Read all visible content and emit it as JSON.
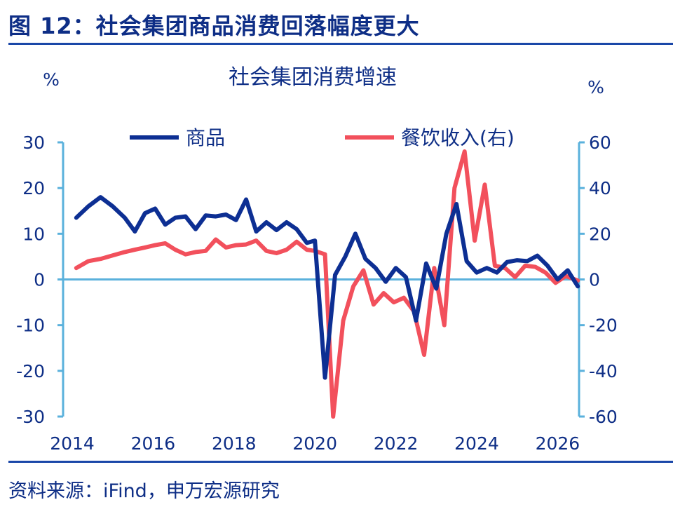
{
  "figure_title": "图 12：社会集团商品消费回落幅度更大",
  "source": "资料来源：iFind，申万宏源研究",
  "colors": {
    "series_goods": "#0d2f93",
    "series_catering": "#f2505c",
    "axis": "#5ab1dc",
    "text": "#0e2e86"
  },
  "chart_data": {
    "type": "line",
    "title": "社会集团消费增速",
    "y_left": {
      "unit": "%",
      "range": [
        -30,
        30
      ],
      "ticks": [
        30,
        20,
        10,
        0,
        -10,
        -20,
        -30
      ]
    },
    "y_right": {
      "unit": "%",
      "range": [
        -60,
        60
      ],
      "ticks": [
        60,
        40,
        20,
        0,
        -20,
        -40,
        -60
      ]
    },
    "x_axis": {
      "range": [
        2014,
        2026.6
      ],
      "ticks": [
        2014,
        2016,
        2018,
        2020,
        2022,
        2024,
        2026
      ]
    },
    "legend_position": "top",
    "series": [
      {
        "name": "商品",
        "axis": "left",
        "points": [
          [
            2014.1,
            13.5
          ],
          [
            2014.4,
            16.0
          ],
          [
            2014.7,
            18.0
          ],
          [
            2015.0,
            16.0
          ],
          [
            2015.3,
            13.5
          ],
          [
            2015.55,
            10.5
          ],
          [
            2015.8,
            14.5
          ],
          [
            2016.05,
            15.5
          ],
          [
            2016.3,
            12.0
          ],
          [
            2016.55,
            13.5
          ],
          [
            2016.8,
            13.8
          ],
          [
            2017.05,
            11.0
          ],
          [
            2017.3,
            14.0
          ],
          [
            2017.55,
            13.8
          ],
          [
            2017.8,
            14.2
          ],
          [
            2018.05,
            13.0
          ],
          [
            2018.3,
            17.5
          ],
          [
            2018.55,
            10.5
          ],
          [
            2018.8,
            12.5
          ],
          [
            2019.05,
            10.8
          ],
          [
            2019.3,
            12.5
          ],
          [
            2019.55,
            11.0
          ],
          [
            2019.8,
            8.0
          ],
          [
            2020.0,
            8.5
          ],
          [
            2020.25,
            -21.5
          ],
          [
            2020.5,
            1.0
          ],
          [
            2020.75,
            5.0
          ],
          [
            2021.0,
            10.0
          ],
          [
            2021.25,
            4.5
          ],
          [
            2021.5,
            2.5
          ],
          [
            2021.75,
            -0.5
          ],
          [
            2022.0,
            2.5
          ],
          [
            2022.25,
            0.5
          ],
          [
            2022.5,
            -9.0
          ],
          [
            2022.75,
            3.5
          ],
          [
            2023.0,
            -2.0
          ],
          [
            2023.25,
            10.0
          ],
          [
            2023.5,
            16.5
          ],
          [
            2023.75,
            4.0
          ],
          [
            2024.0,
            1.5
          ],
          [
            2024.25,
            2.5
          ],
          [
            2024.5,
            1.5
          ],
          [
            2024.75,
            3.8
          ],
          [
            2025.0,
            4.2
          ],
          [
            2025.25,
            4.0
          ],
          [
            2025.5,
            5.2
          ],
          [
            2025.75,
            3.0
          ],
          [
            2026.0,
            0.0
          ],
          [
            2026.25,
            2.0
          ],
          [
            2026.5,
            -1.5
          ]
        ]
      },
      {
        "name": "餐饮收入(右)",
        "axis": "right",
        "points": [
          [
            2014.1,
            5.0
          ],
          [
            2014.4,
            8.0
          ],
          [
            2014.7,
            9.0
          ],
          [
            2015.0,
            10.5
          ],
          [
            2015.3,
            12.0
          ],
          [
            2015.55,
            13.0
          ],
          [
            2015.8,
            14.0
          ],
          [
            2016.05,
            15.0
          ],
          [
            2016.3,
            15.8
          ],
          [
            2016.55,
            13.0
          ],
          [
            2016.8,
            11.0
          ],
          [
            2017.05,
            12.0
          ],
          [
            2017.3,
            12.5
          ],
          [
            2017.55,
            17.5
          ],
          [
            2017.8,
            14.0
          ],
          [
            2018.05,
            15.0
          ],
          [
            2018.3,
            15.3
          ],
          [
            2018.55,
            17.0
          ],
          [
            2018.8,
            12.5
          ],
          [
            2019.05,
            11.5
          ],
          [
            2019.3,
            13.0
          ],
          [
            2019.55,
            16.5
          ],
          [
            2019.8,
            13.0
          ],
          [
            2020.0,
            12.5
          ],
          [
            2020.25,
            11.0
          ],
          [
            2020.45,
            -60.0
          ],
          [
            2020.7,
            -18.0
          ],
          [
            2020.95,
            -3.0
          ],
          [
            2021.2,
            4.0
          ],
          [
            2021.45,
            -11.0
          ],
          [
            2021.7,
            -6.0
          ],
          [
            2021.95,
            -10.0
          ],
          [
            2022.2,
            -8.0
          ],
          [
            2022.45,
            -14.0
          ],
          [
            2022.7,
            -33.0
          ],
          [
            2022.95,
            5.0
          ],
          [
            2023.2,
            -20.0
          ],
          [
            2023.45,
            40.0
          ],
          [
            2023.7,
            56.0
          ],
          [
            2023.95,
            17.0
          ],
          [
            2024.2,
            41.5
          ],
          [
            2024.45,
            6.0
          ],
          [
            2024.7,
            5.0
          ],
          [
            2024.95,
            1.0
          ],
          [
            2025.2,
            6.0
          ],
          [
            2025.45,
            5.5
          ],
          [
            2025.7,
            3.0
          ],
          [
            2025.95,
            -1.5
          ],
          [
            2026.2,
            1.5
          ],
          [
            2026.5,
            -0.5
          ]
        ]
      }
    ]
  }
}
